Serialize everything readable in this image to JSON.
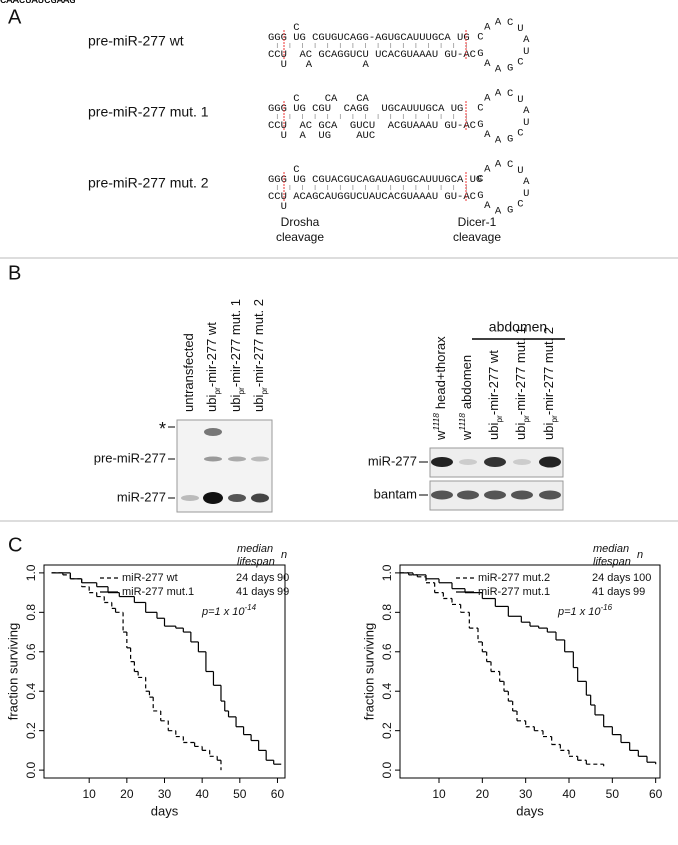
{
  "panel_a": {
    "letter": "A",
    "constructs": [
      {
        "label": "pre-miR-277 wt",
        "top_extra": "    C",
        "top": "GGG UG CGUGUCAGG-AGUGCAUUUGCA UG",
        "bottom": "CCU  AC GCAGGUCU UCACGUAAAU GU-AC",
        "bottom_extra": "  U   A        A",
        "loop": "CAACUAUCGAAG"
      },
      {
        "label": "pre-miR-277 mut. 1",
        "top_extra": "    C    CA   CA",
        "top": "GGG UG CGU  CAGG  UGCAUUUGCA UG",
        "bottom": "CCU  AC GCA  GUCU  ACGUAAAU GU-AC",
        "bottom_extra": "  U  A  UG    AUC",
        "loop": "CAACUAUCGAAG"
      },
      {
        "label": "pre-miR-277 mut. 2",
        "top_extra": "    C",
        "top": "GGG UG CGUACGUCAGAUAGUGCAUUUGCA UG",
        "bottom": "CCU ACAGCAUGGUCUAUCACGUAAAU GU-AC",
        "bottom_extra": "  U",
        "loop": "CAACUAUCGAAG"
      }
    ],
    "drosha": [
      "Drosha",
      "cleavage"
    ],
    "dicer": [
      "Dicer-1",
      "cleavage"
    ]
  },
  "panel_b": {
    "letter": "B",
    "left_blot": {
      "lanes": [
        {
          "text": "untransfected"
        },
        {
          "prefix": "ubi",
          "sub": "pr",
          "text": "-mir-277 wt"
        },
        {
          "prefix": "ubi",
          "sub": "pr",
          "text": "-mir-277 mut. 1"
        },
        {
          "prefix": "ubi",
          "sub": "pr",
          "text": "-mir-277 mut. 2"
        }
      ],
      "rows": [
        "*",
        "pre-miR-277",
        "miR-277"
      ]
    },
    "right_blot": {
      "group_label": "abdomen",
      "lanes": [
        {
          "prefix": "w",
          "sup": "1118",
          "text": "head+thorax"
        },
        {
          "prefix": "w",
          "sup": "1118",
          "text": "abdomen"
        },
        {
          "prefix": "ubi",
          "sub": "pr",
          "text": "-mir-277 wt"
        },
        {
          "prefix": "ubi",
          "sub": "pr",
          "text": "-mir-277 mut. 1"
        },
        {
          "prefix": "ubi",
          "sub": "pr",
          "text": "-mir-277 mut. 2"
        }
      ],
      "rows": [
        "miR-277",
        "bantam"
      ]
    }
  },
  "panel_c": {
    "letter": "C"
  },
  "chart_data": [
    {
      "type": "line",
      "step": true,
      "xlabel": "days",
      "ylabel": "fraction surviving",
      "xlim": [
        -2,
        62
      ],
      "ylim": [
        -0.04,
        1.04
      ],
      "xticks": [
        10,
        20,
        30,
        40,
        50,
        60
      ],
      "yticks": [
        {
          "value": 0,
          "label": "0.0"
        },
        0.2,
        0.4,
        0.6,
        0.8,
        {
          "value": 1,
          "label": "1.0"
        }
      ],
      "legend_headers": {
        "median": [
          "median",
          "lifespan"
        ],
        "n": "n"
      },
      "annotation": {
        "text": "p=1 x 10",
        "exponent": "-14"
      },
      "series": [
        {
          "name": "miR-277 wt",
          "line_style": "dashed",
          "color": "#000000",
          "median_lifespan": "24 days",
          "n": 90,
          "x": [
            0,
            3,
            5,
            8,
            10,
            12,
            14,
            16,
            17,
            19,
            20,
            21,
            22,
            23,
            25,
            26,
            27,
            29,
            31,
            33,
            35,
            38,
            40,
            42,
            44,
            45
          ],
          "values": [
            1.0,
            0.99,
            0.97,
            0.93,
            0.9,
            0.88,
            0.85,
            0.82,
            0.8,
            0.7,
            0.62,
            0.55,
            0.5,
            0.47,
            0.4,
            0.37,
            0.3,
            0.25,
            0.2,
            0.17,
            0.14,
            0.12,
            0.1,
            0.07,
            0.05,
            0.0
          ]
        },
        {
          "name": "miR-277 mut.1",
          "line_style": "solid",
          "color": "#000000",
          "median_lifespan": "41 days",
          "n": 99,
          "x": [
            0,
            5,
            8,
            12,
            15,
            18,
            22,
            25,
            28,
            30,
            33,
            35,
            37,
            39,
            41,
            43,
            45,
            46,
            47,
            49,
            51,
            53,
            55,
            57,
            59,
            61
          ],
          "values": [
            1.0,
            0.97,
            0.95,
            0.93,
            0.9,
            0.88,
            0.85,
            0.8,
            0.77,
            0.73,
            0.72,
            0.7,
            0.65,
            0.6,
            0.5,
            0.43,
            0.35,
            0.3,
            0.27,
            0.22,
            0.18,
            0.15,
            0.1,
            0.05,
            0.03,
            0.03
          ]
        }
      ]
    },
    {
      "type": "line",
      "step": true,
      "xlabel": "days",
      "ylabel": "fraction surviving",
      "xlim": [
        1,
        61
      ],
      "ylim": [
        -0.04,
        1.04
      ],
      "xticks": [
        10,
        20,
        30,
        40,
        50,
        60
      ],
      "yticks": [
        {
          "value": 0,
          "label": "0.0"
        },
        0.2,
        0.4,
        0.6,
        0.8,
        {
          "value": 1,
          "label": "1.0"
        }
      ],
      "legend_headers": {
        "median": [
          "median",
          "lifespan"
        ],
        "n": "n"
      },
      "annotation": {
        "text": "p=1 x 10",
        "exponent": "-16"
      },
      "series": [
        {
          "name": "miR-277 mut.2",
          "line_style": "dashed",
          "color": "#000000",
          "median_lifespan": "24 days",
          "n": 100,
          "x": [
            1,
            3,
            5,
            7,
            9,
            11,
            13,
            15,
            17,
            19,
            20,
            21,
            22,
            24,
            25,
            26,
            27,
            28,
            30,
            32,
            34,
            36,
            38,
            40,
            42,
            44,
            48
          ],
          "values": [
            1.0,
            0.99,
            0.98,
            0.95,
            0.9,
            0.87,
            0.84,
            0.8,
            0.72,
            0.65,
            0.6,
            0.55,
            0.5,
            0.45,
            0.4,
            0.35,
            0.3,
            0.25,
            0.22,
            0.2,
            0.17,
            0.13,
            0.1,
            0.07,
            0.05,
            0.03,
            0.02
          ]
        },
        {
          "name": "miR-277 mut.1",
          "line_style": "solid",
          "color": "#000000",
          "median_lifespan": "41 days",
          "n": 99,
          "x": [
            1,
            4,
            7,
            10,
            13,
            16,
            20,
            23,
            26,
            29,
            31,
            33,
            35,
            37,
            39,
            41,
            42,
            44,
            45,
            46,
            48,
            50,
            52,
            54,
            56,
            58,
            60
          ],
          "values": [
            1.0,
            0.99,
            0.97,
            0.95,
            0.92,
            0.9,
            0.87,
            0.83,
            0.78,
            0.75,
            0.73,
            0.72,
            0.7,
            0.66,
            0.6,
            0.52,
            0.45,
            0.38,
            0.33,
            0.28,
            0.22,
            0.18,
            0.14,
            0.1,
            0.07,
            0.04,
            0.03
          ]
        }
      ]
    }
  ]
}
